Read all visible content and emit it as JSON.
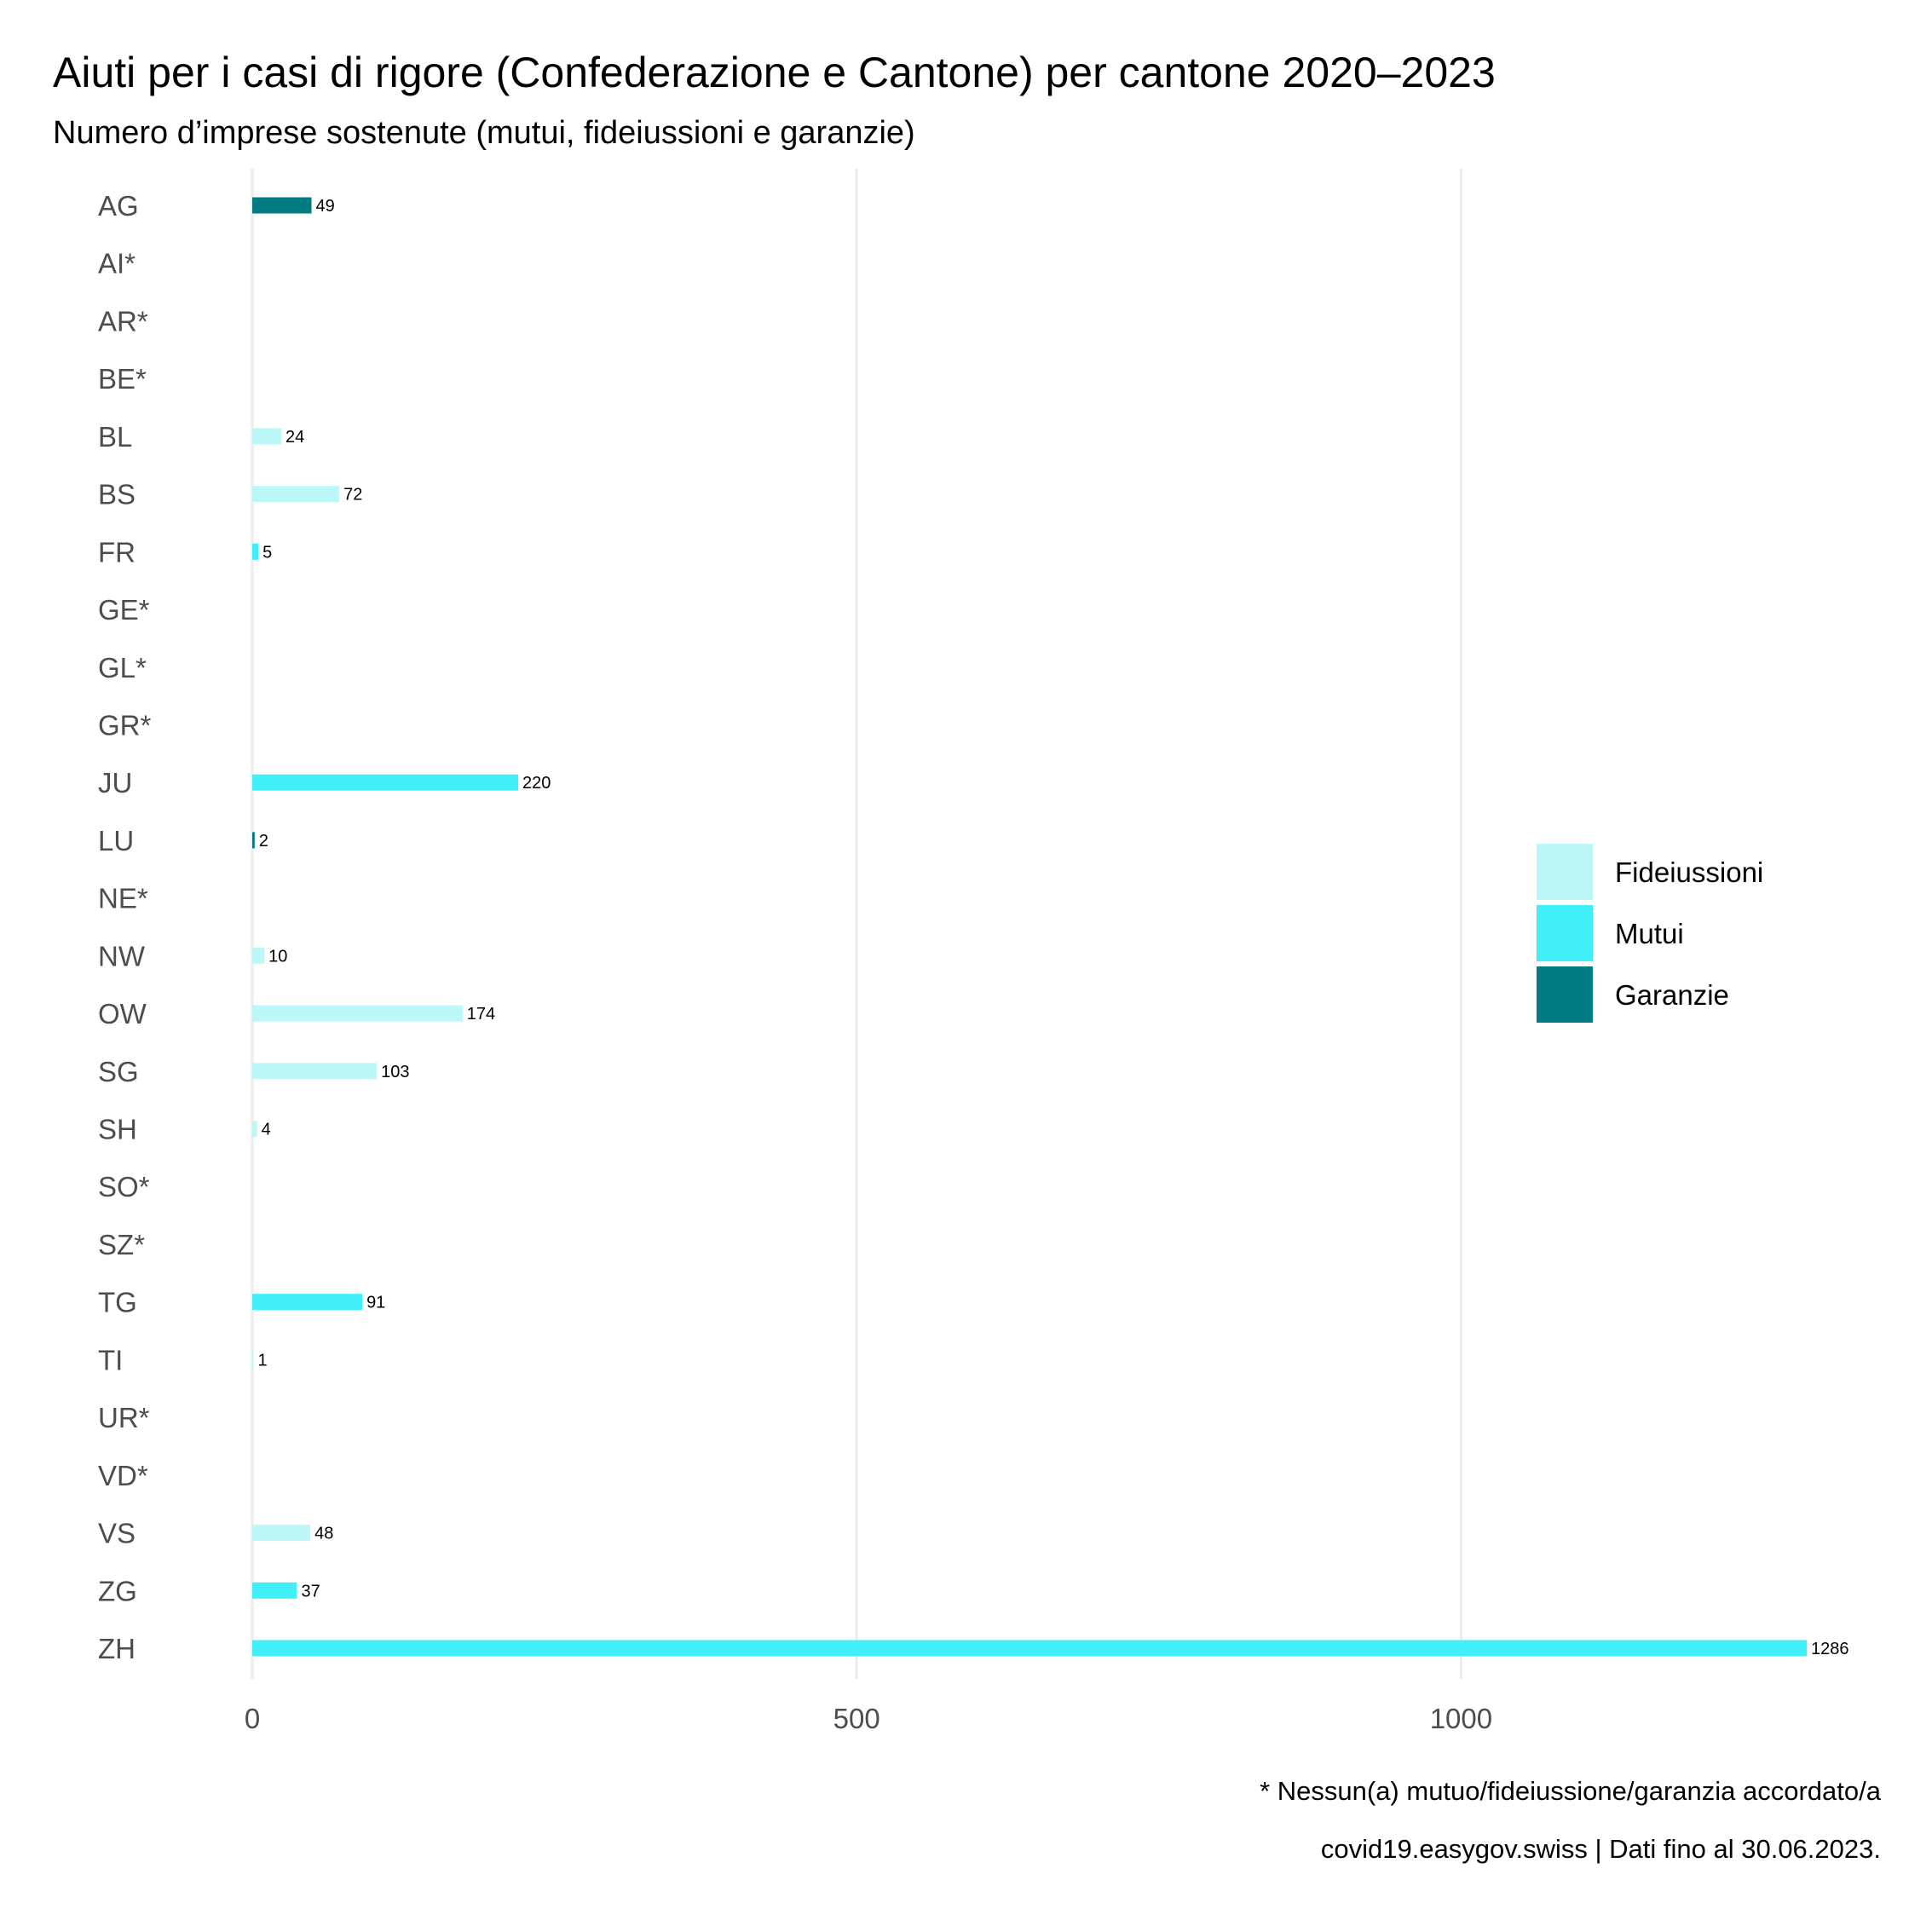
{
  "chart_data": {
    "type": "bar",
    "orientation": "horizontal",
    "title": "Aiuti per i casi di rigore (Confederazione e Cantone) per cantone 2020–2023",
    "subtitle": "Numero d’imprese sostenute (mutui, fideiussioni e garanzie)",
    "xlim": [
      0,
      1310
    ],
    "x_ticks": [
      0,
      500,
      1000
    ],
    "x_tick_labels": [
      "0",
      "500",
      "1000"
    ],
    "grid": "vertical major gridlines",
    "legend_position": "right",
    "series": [
      {
        "name": "Fideiussioni",
        "color": "#bdf8f9"
      },
      {
        "name": "Mutui",
        "color": "#40eff7"
      },
      {
        "name": "Garanzie",
        "color": "#007b82"
      }
    ],
    "categories": [
      "AG",
      "AI*",
      "AR*",
      "BE*",
      "BL",
      "BS",
      "FR",
      "GE*",
      "GL*",
      "GR*",
      "JU",
      "LU",
      "NE*",
      "NW",
      "OW",
      "SG",
      "SH",
      "SO*",
      "SZ*",
      "TG",
      "TI",
      "UR*",
      "VD*",
      "VS",
      "ZG",
      "ZH"
    ],
    "bars": [
      {
        "category": "AG",
        "series": "Garanzie",
        "value": 49,
        "label": "49"
      },
      {
        "category": "BL",
        "series": "Fideiussioni",
        "value": 24,
        "label": "24"
      },
      {
        "category": "BS",
        "series": "Fideiussioni",
        "value": 72,
        "label": "72"
      },
      {
        "category": "FR",
        "series": "Mutui",
        "value": 5,
        "label": "5"
      },
      {
        "category": "JU",
        "series": "Mutui",
        "value": 220,
        "label": "220"
      },
      {
        "category": "LU",
        "series": "Garanzie",
        "value": 2,
        "label": "2"
      },
      {
        "category": "NW",
        "series": "Fideiussioni",
        "value": 10,
        "label": "10"
      },
      {
        "category": "OW",
        "series": "Fideiussioni",
        "value": 174,
        "label": "174"
      },
      {
        "category": "SG",
        "series": "Fideiussioni",
        "value": 103,
        "label": "103"
      },
      {
        "category": "SH",
        "series": "Fideiussioni",
        "value": 4,
        "label": "4"
      },
      {
        "category": "TG",
        "series": "Mutui",
        "value": 91,
        "label": "91"
      },
      {
        "category": "TI",
        "series": "Fideiussioni",
        "value": 1,
        "label": "1"
      },
      {
        "category": "VS",
        "series": "Fideiussioni",
        "value": 48,
        "label": "48"
      },
      {
        "category": "ZG",
        "series": "Mutui",
        "value": 37,
        "label": "37"
      },
      {
        "category": "ZH",
        "series": "Mutui",
        "value": 1286,
        "label": "1286"
      }
    ],
    "captions": [
      "* Nessun(a) mutuo/fideiussione/garanzia accordato/a",
      "covid19.easygov.swiss | Dati fino al 30.06.2023."
    ]
  }
}
